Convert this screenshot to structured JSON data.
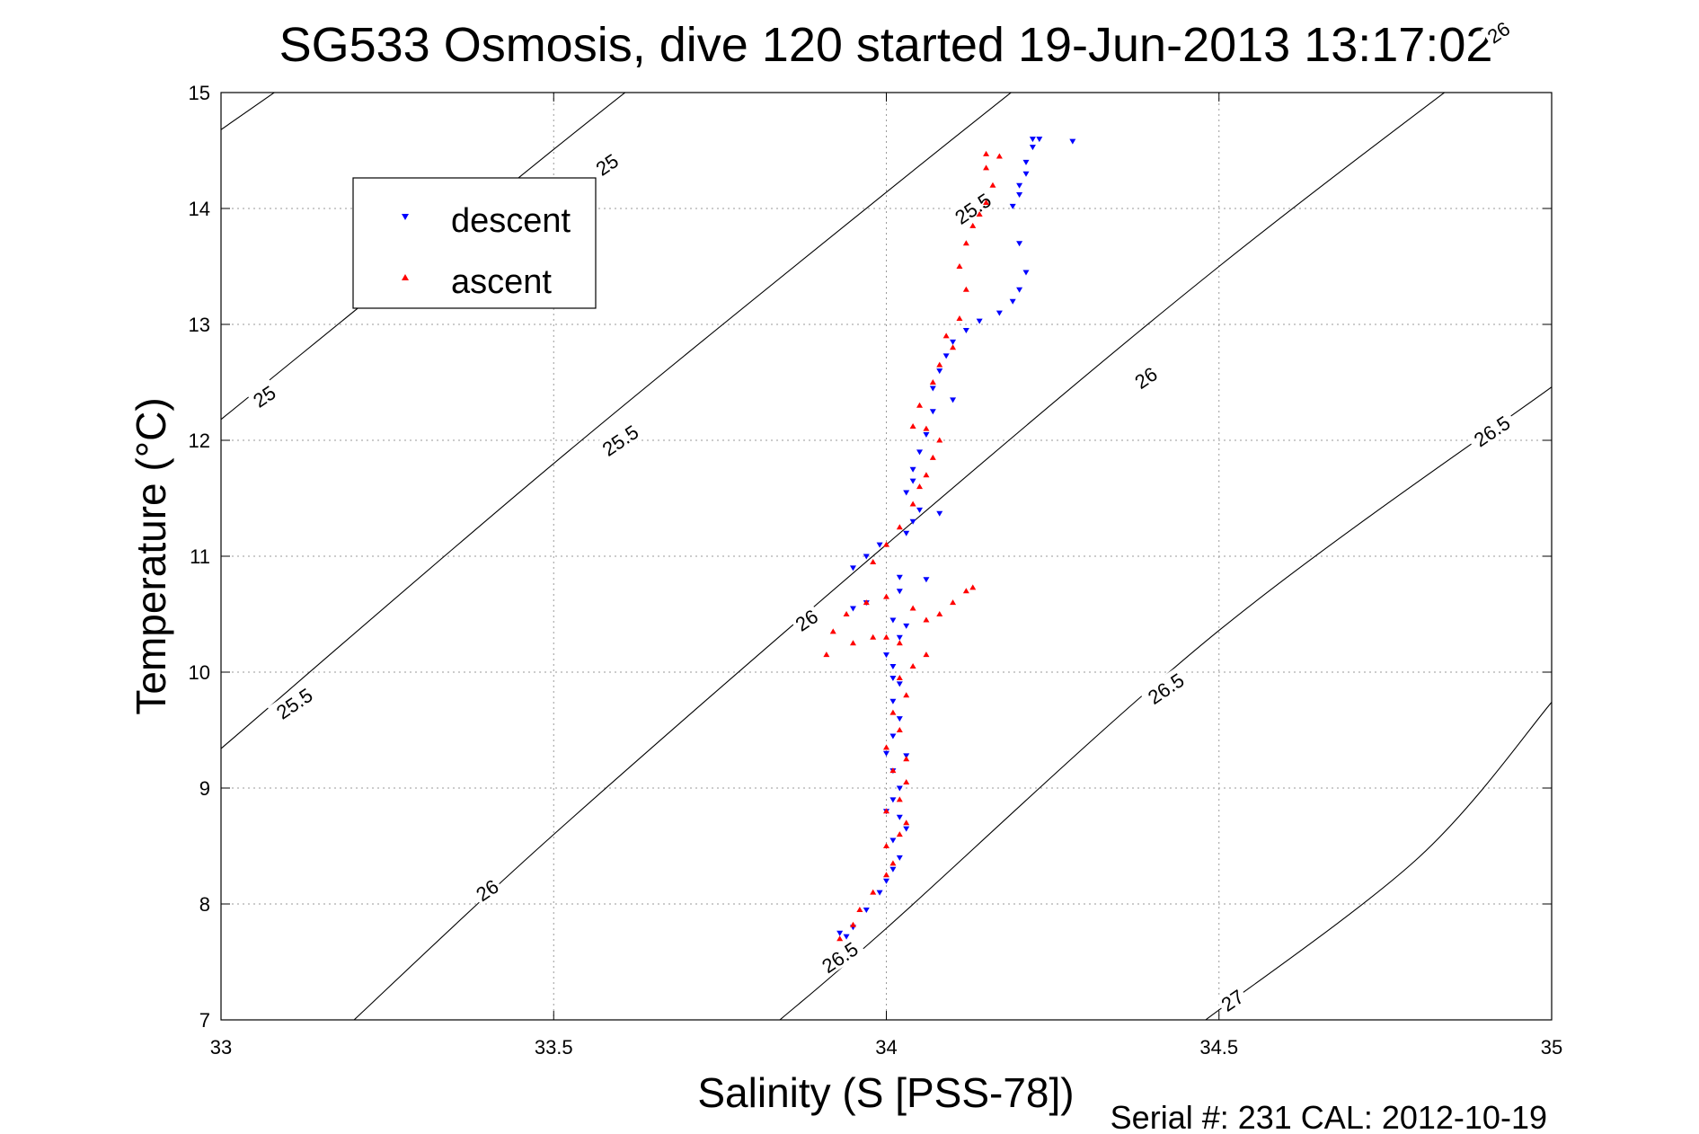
{
  "chart_data": {
    "type": "scatter",
    "title": "SG533 Osmosis, dive 120 started 19-Jun-2013 13:17:02",
    "xlabel": "Salinity (S [PSS-78])",
    "ylabel": "Temperature (°C)",
    "xlim": [
      33,
      35
    ],
    "ylim": [
      7,
      15
    ],
    "xticks": [
      33,
      33.5,
      34,
      34.5,
      35
    ],
    "yticks": [
      7,
      8,
      9,
      10,
      11,
      12,
      13,
      14,
      15
    ],
    "xtick_labels": [
      "33",
      "33.5",
      "34",
      "34.5",
      "35"
    ],
    "ytick_labels": [
      "7",
      "8",
      "9",
      "10",
      "11",
      "12",
      "13",
      "14",
      "15"
    ],
    "grid": true,
    "legend_position": "upper-left",
    "contours": [
      {
        "level": "25",
        "points": [
          [
            33,
            14.68
          ],
          [
            33.5,
            16.68
          ]
        ]
      },
      {
        "level": "25",
        "points": [
          [
            33,
            12.18
          ],
          [
            33.12,
            12.74
          ],
          [
            33.5,
            14.51
          ],
          [
            33.74,
            15.6
          ]
        ]
      },
      {
        "level": "25.5",
        "points": [
          [
            33,
            9.34
          ],
          [
            33.5,
            11.8
          ],
          [
            34,
            14.14
          ],
          [
            34.4,
            15.97
          ]
        ]
      },
      {
        "level": "26",
        "points": [
          [
            33.2,
            7
          ],
          [
            33.5,
            8.6
          ],
          [
            34,
            11.1
          ],
          [
            34.5,
            13.5
          ],
          [
            35,
            15.7
          ]
        ]
      },
      {
        "level": "26.5",
        "points": [
          [
            33.84,
            7
          ],
          [
            34,
            7.79
          ],
          [
            34.5,
            10.36
          ],
          [
            35,
            12.46
          ]
        ]
      },
      {
        "level": "27",
        "points": [
          [
            34.48,
            7
          ],
          [
            34.8,
            8.4
          ],
          [
            35,
            9.74
          ]
        ]
      }
    ],
    "contour_labels": [
      {
        "text": "25",
        "x": 33.58,
        "y": 14.38,
        "angle": -34
      },
      {
        "text": "25",
        "x": 33.065,
        "y": 12.38,
        "angle": -34
      },
      {
        "text": "25.5",
        "x": 34.13,
        "y": 14.0,
        "angle": -34
      },
      {
        "text": "25.5",
        "x": 33.6,
        "y": 12.0,
        "angle": -34
      },
      {
        "text": "25.5",
        "x": 33.11,
        "y": 9.73,
        "angle": -34
      },
      {
        "text": "26",
        "x": 34.92,
        "y": 15.52,
        "angle": -34
      },
      {
        "text": "26",
        "x": 34.39,
        "y": 12.54,
        "angle": -34
      },
      {
        "text": "26",
        "x": 33.88,
        "y": 10.45,
        "angle": -34
      },
      {
        "text": "26",
        "x": 33.4,
        "y": 8.12,
        "angle": -34
      },
      {
        "text": "26.5",
        "x": 34.91,
        "y": 12.08,
        "angle": -34
      },
      {
        "text": "26.5",
        "x": 34.42,
        "y": 9.86,
        "angle": -34
      },
      {
        "text": "26.5",
        "x": 33.93,
        "y": 7.54,
        "angle": -34
      },
      {
        "text": "27",
        "x": 34.52,
        "y": 7.17,
        "angle": -34
      }
    ],
    "series": [
      {
        "name": "descent",
        "color": "#0000ff",
        "marker": "triangle-down",
        "points": [
          [
            34.22,
            14.6
          ],
          [
            34.23,
            14.6
          ],
          [
            34.28,
            14.58
          ],
          [
            34.22,
            14.53
          ],
          [
            34.21,
            14.4
          ],
          [
            34.21,
            14.3
          ],
          [
            34.2,
            14.2
          ],
          [
            34.2,
            14.12
          ],
          [
            34.19,
            14.02
          ],
          [
            34.2,
            13.7
          ],
          [
            34.21,
            13.45
          ],
          [
            34.2,
            13.3
          ],
          [
            34.19,
            13.2
          ],
          [
            34.17,
            13.1
          ],
          [
            34.14,
            13.03
          ],
          [
            34.12,
            12.95
          ],
          [
            34.1,
            12.85
          ],
          [
            34.09,
            12.73
          ],
          [
            34.08,
            12.6
          ],
          [
            34.07,
            12.45
          ],
          [
            34.1,
            12.35
          ],
          [
            34.07,
            12.25
          ],
          [
            34.06,
            12.05
          ],
          [
            34.05,
            11.9
          ],
          [
            34.04,
            11.75
          ],
          [
            34.04,
            11.65
          ],
          [
            34.03,
            11.55
          ],
          [
            34.05,
            11.4
          ],
          [
            34.08,
            11.37
          ],
          [
            34.04,
            11.3
          ],
          [
            34.03,
            11.2
          ],
          [
            33.99,
            11.1
          ],
          [
            33.97,
            11.0
          ],
          [
            33.95,
            10.9
          ],
          [
            34.02,
            10.82
          ],
          [
            34.06,
            10.8
          ],
          [
            34.02,
            10.7
          ],
          [
            33.97,
            10.6
          ],
          [
            33.95,
            10.55
          ],
          [
            34.01,
            10.45
          ],
          [
            34.03,
            10.4
          ],
          [
            34.02,
            10.3
          ],
          [
            34.0,
            10.15
          ],
          [
            34.01,
            10.05
          ],
          [
            34.01,
            9.95
          ],
          [
            34.02,
            9.9
          ],
          [
            34.01,
            9.75
          ],
          [
            34.02,
            9.6
          ],
          [
            34.01,
            9.45
          ],
          [
            34.0,
            9.3
          ],
          [
            34.03,
            9.28
          ],
          [
            34.01,
            9.15
          ],
          [
            34.02,
            9.0
          ],
          [
            34.01,
            8.9
          ],
          [
            34.02,
            8.75
          ],
          [
            34.0,
            8.8
          ],
          [
            34.03,
            8.65
          ],
          [
            34.01,
            8.55
          ],
          [
            34.02,
            8.4
          ],
          [
            34.01,
            8.3
          ],
          [
            34.0,
            8.2
          ],
          [
            33.99,
            8.1
          ],
          [
            33.97,
            7.95
          ],
          [
            33.95,
            7.8
          ],
          [
            33.93,
            7.75
          ],
          [
            33.94,
            7.72
          ]
        ]
      },
      {
        "name": "ascent",
        "color": "#ff0000",
        "marker": "triangle-up",
        "points": [
          [
            33.93,
            7.7
          ],
          [
            33.95,
            7.82
          ],
          [
            33.96,
            7.95
          ],
          [
            33.98,
            8.1
          ],
          [
            34.0,
            8.25
          ],
          [
            34.01,
            8.35
          ],
          [
            34.0,
            8.5
          ],
          [
            34.02,
            8.6
          ],
          [
            34.03,
            8.7
          ],
          [
            34.0,
            8.8
          ],
          [
            34.02,
            8.9
          ],
          [
            34.03,
            9.05
          ],
          [
            34.01,
            9.15
          ],
          [
            34.03,
            9.25
          ],
          [
            34.0,
            9.35
          ],
          [
            34.02,
            9.5
          ],
          [
            34.01,
            9.65
          ],
          [
            34.03,
            9.8
          ],
          [
            34.02,
            9.95
          ],
          [
            34.04,
            10.05
          ],
          [
            34.06,
            10.15
          ],
          [
            34.02,
            10.25
          ],
          [
            34.0,
            10.3
          ],
          [
            33.98,
            10.3
          ],
          [
            33.95,
            10.25
          ],
          [
            33.91,
            10.15
          ],
          [
            33.92,
            10.35
          ],
          [
            33.94,
            10.5
          ],
          [
            33.97,
            10.6
          ],
          [
            34.0,
            10.65
          ],
          [
            34.04,
            10.55
          ],
          [
            34.06,
            10.45
          ],
          [
            34.08,
            10.5
          ],
          [
            34.1,
            10.6
          ],
          [
            34.12,
            10.7
          ],
          [
            34.13,
            10.73
          ],
          [
            33.98,
            10.95
          ],
          [
            34.0,
            11.1
          ],
          [
            34.02,
            11.25
          ],
          [
            34.04,
            11.45
          ],
          [
            34.05,
            11.6
          ],
          [
            34.06,
            11.7
          ],
          [
            34.07,
            11.85
          ],
          [
            34.08,
            12.0
          ],
          [
            34.06,
            12.1
          ],
          [
            34.04,
            12.12
          ],
          [
            34.05,
            12.3
          ],
          [
            34.07,
            12.5
          ],
          [
            34.08,
            12.65
          ],
          [
            34.1,
            12.8
          ],
          [
            34.09,
            12.9
          ],
          [
            34.11,
            13.05
          ],
          [
            34.12,
            13.3
          ],
          [
            34.11,
            13.5
          ],
          [
            34.12,
            13.7
          ],
          [
            34.13,
            13.85
          ],
          [
            34.14,
            13.95
          ],
          [
            34.15,
            14.05
          ],
          [
            34.16,
            14.2
          ],
          [
            34.15,
            14.35
          ],
          [
            34.17,
            14.45
          ],
          [
            34.15,
            14.47
          ]
        ]
      }
    ],
    "footer": "Serial #: 231  CAL: 2012-10-19"
  }
}
